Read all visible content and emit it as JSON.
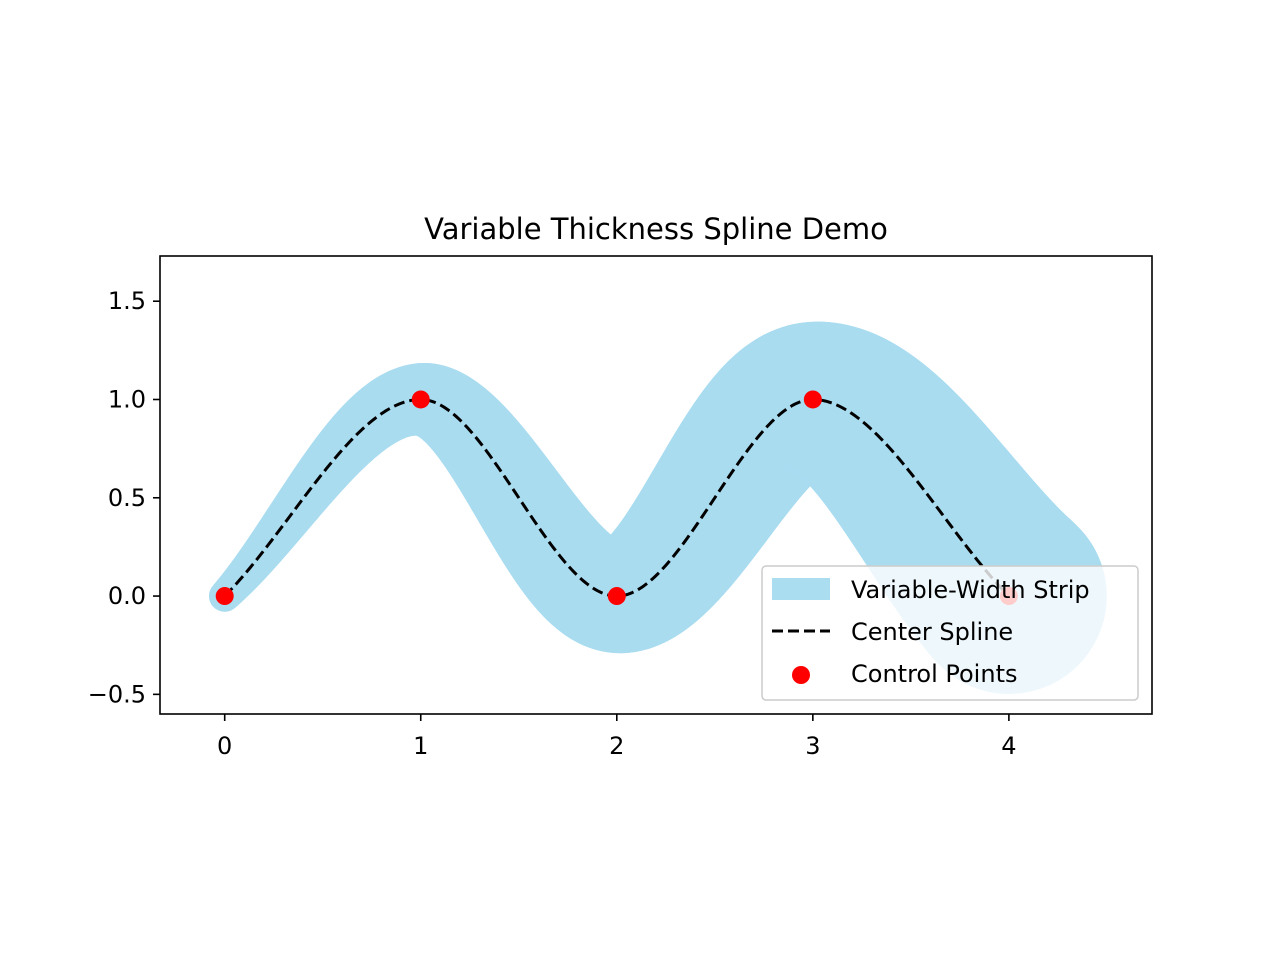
{
  "chart_data": {
    "type": "line",
    "title": "Variable Thickness Spline Demo",
    "xlabel": "",
    "ylabel": "",
    "xlim": [
      -0.33,
      4.73
    ],
    "ylim": [
      -0.6,
      1.73
    ],
    "x_ticks": [
      0,
      1,
      2,
      3,
      4
    ],
    "y_ticks": [
      -0.5,
      0.0,
      0.5,
      1.0,
      1.5
    ],
    "x_tick_labels": [
      "0",
      "1",
      "2",
      "3",
      "4"
    ],
    "y_tick_labels": [
      "−0.5",
      "0.0",
      "0.5",
      "1.0",
      "1.5"
    ],
    "grid": false,
    "legend_position": "lower-right",
    "series": [
      {
        "name": "Variable-Width Strip",
        "kind": "band",
        "color": "#87ceeb",
        "opacity": 0.7,
        "center_x": [
          0,
          1,
          2,
          3,
          4
        ],
        "center_y": [
          0,
          1,
          0,
          1,
          0
        ],
        "half_width_start": 0.08,
        "half_width_end": 0.5
      },
      {
        "name": "Center Spline",
        "kind": "line",
        "color": "#000000",
        "dash": "dashed",
        "x": [
          0,
          1,
          2,
          3,
          4
        ],
        "y": [
          0,
          1,
          0,
          1,
          0
        ]
      },
      {
        "name": "Control Points",
        "kind": "scatter",
        "color": "#ff0000",
        "x": [
          0,
          1,
          2,
          3,
          4
        ],
        "y": [
          0,
          1,
          0,
          1,
          0
        ]
      }
    ]
  }
}
